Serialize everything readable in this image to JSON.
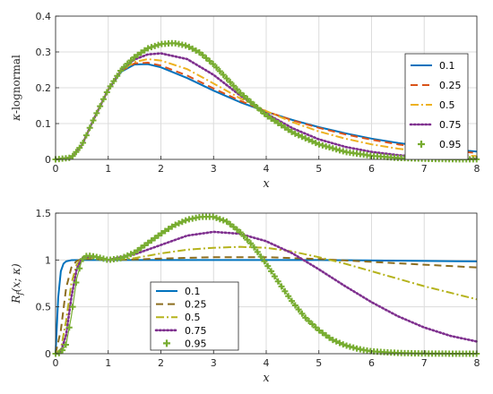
{
  "chart_data": [
    {
      "type": "line",
      "ylabel_prefix": "κ",
      "ylabel_rest": "-lognormal",
      "xlabel": "x",
      "xlim": [
        0,
        8
      ],
      "ylim": [
        0,
        0.4
      ],
      "xticks": [
        0,
        1,
        2,
        3,
        4,
        5,
        6,
        7,
        8
      ],
      "yticks": [
        "0",
        "0.1",
        "0.2",
        "0.3",
        "0.4"
      ],
      "grid": true,
      "legend_position": "right",
      "series": [
        {
          "name": "0.1",
          "color": "#0072BD",
          "style": "solid",
          "x": [
            0,
            0.3,
            0.5,
            0.75,
            1,
            1.25,
            1.5,
            1.75,
            2,
            2.5,
            3,
            3.5,
            4,
            4.5,
            5,
            5.5,
            6,
            6.5,
            7,
            7.5,
            8
          ],
          "y": [
            0,
            0.005,
            0.04,
            0.12,
            0.195,
            0.245,
            0.265,
            0.266,
            0.257,
            0.227,
            0.192,
            0.16,
            0.133,
            0.11,
            0.09,
            0.073,
            0.058,
            0.046,
            0.036,
            0.028,
            0.022
          ]
        },
        {
          "name": "0.25",
          "color": "#D95319",
          "style": "dashed",
          "x": [
            0,
            0.3,
            0.5,
            0.75,
            1,
            1.25,
            1.5,
            1.75,
            2,
            2.5,
            3,
            3.5,
            4,
            4.5,
            5,
            5.5,
            6,
            6.5,
            7,
            7.5,
            8
          ],
          "y": [
            0,
            0.005,
            0.04,
            0.12,
            0.195,
            0.247,
            0.268,
            0.27,
            0.262,
            0.234,
            0.198,
            0.164,
            0.134,
            0.109,
            0.088,
            0.07,
            0.055,
            0.042,
            0.032,
            0.024,
            0.018
          ]
        },
        {
          "name": "0.5",
          "color": "#EDB120",
          "style": "dashdot",
          "x": [
            0,
            0.3,
            0.5,
            0.75,
            1,
            1.25,
            1.5,
            1.75,
            2,
            2.5,
            3,
            3.5,
            4,
            4.5,
            5,
            5.5,
            6,
            6.5,
            7,
            7.5,
            8
          ],
          "y": [
            0,
            0.005,
            0.04,
            0.12,
            0.195,
            0.248,
            0.272,
            0.28,
            0.276,
            0.252,
            0.212,
            0.171,
            0.135,
            0.104,
            0.078,
            0.058,
            0.042,
            0.03,
            0.021,
            0.014,
            0.009
          ]
        },
        {
          "name": "0.75",
          "color": "#7E2F8E",
          "style": "dotted",
          "x": [
            0,
            0.3,
            0.5,
            0.75,
            1,
            1.25,
            1.5,
            1.75,
            2,
            2.5,
            3,
            3.5,
            4,
            4.5,
            5,
            5.5,
            6,
            6.5,
            7,
            7.5,
            8
          ],
          "y": [
            0,
            0.005,
            0.04,
            0.12,
            0.195,
            0.25,
            0.279,
            0.293,
            0.296,
            0.28,
            0.236,
            0.179,
            0.128,
            0.087,
            0.056,
            0.035,
            0.021,
            0.012,
            0.006,
            0.003,
            0.0015
          ]
        },
        {
          "name": "0.95",
          "color": "#77AC30",
          "style": "plus",
          "x": [
            0,
            0.3,
            0.5,
            0.75,
            1,
            1.25,
            1.5,
            1.75,
            2,
            2.25,
            2.5,
            2.75,
            3,
            3.5,
            4,
            4.5,
            5,
            5.5,
            6,
            6.5,
            7,
            7.5,
            8
          ],
          "y": [
            0,
            0.005,
            0.04,
            0.12,
            0.195,
            0.251,
            0.286,
            0.31,
            0.322,
            0.325,
            0.317,
            0.297,
            0.265,
            0.187,
            0.123,
            0.075,
            0.042,
            0.021,
            0.01,
            0.004,
            0.0015,
            0.0005,
            0.0002
          ]
        }
      ]
    },
    {
      "type": "line",
      "ylabel_main": "R",
      "ylabel_sub": "f",
      "ylabel_rest": "(x; κ)",
      "xlabel": "x",
      "xlim": [
        0,
        8
      ],
      "ylim": [
        0,
        1.5
      ],
      "xticks": [
        0,
        1,
        2,
        3,
        4,
        5,
        6,
        7,
        8
      ],
      "yticks": [
        "0",
        "0.5",
        "1",
        "1.5"
      ],
      "grid": true,
      "legend_position": "bottom-left",
      "series": [
        {
          "name": "0.1",
          "color": "#0072BD",
          "style": "solid",
          "x": [
            0,
            0.05,
            0.1,
            0.15,
            0.2,
            0.3,
            0.5,
            1,
            2,
            3,
            4,
            5,
            6,
            7,
            8
          ],
          "y": [
            0,
            0.6,
            0.88,
            0.96,
            0.985,
            0.998,
            1.0,
            1.0,
            1.0,
            1.0,
            1.0,
            1.0,
            0.995,
            0.99,
            0.985
          ]
        },
        {
          "name": "0.25",
          "color": "#8c6d1f",
          "style": "dashed",
          "x": [
            0,
            0.1,
            0.2,
            0.3,
            0.4,
            0.5,
            0.7,
            1,
            1.5,
            2,
            3,
            4,
            5,
            6,
            7,
            8
          ],
          "y": [
            0,
            0.25,
            0.7,
            0.92,
            0.99,
            1.01,
            1.01,
            1.0,
            1.005,
            1.015,
            1.03,
            1.03,
            1.01,
            0.98,
            0.95,
            0.92
          ]
        },
        {
          "name": "0.5",
          "color": "#b5b31d",
          "style": "dashdot",
          "x": [
            0,
            0.1,
            0.2,
            0.3,
            0.4,
            0.5,
            0.7,
            1,
            1.5,
            2,
            2.5,
            3,
            3.5,
            4,
            4.5,
            5,
            5.5,
            6,
            6.5,
            7,
            7.5,
            8
          ],
          "y": [
            0,
            0.05,
            0.35,
            0.75,
            0.95,
            1.02,
            1.03,
            1.0,
            1.02,
            1.07,
            1.11,
            1.13,
            1.14,
            1.13,
            1.09,
            1.03,
            0.96,
            0.88,
            0.8,
            0.72,
            0.65,
            0.58
          ]
        },
        {
          "name": "0.75",
          "color": "#7E2F8E",
          "style": "dotted",
          "x": [
            0,
            0.1,
            0.2,
            0.3,
            0.4,
            0.5,
            0.7,
            1,
            1.5,
            2,
            2.5,
            3,
            3.5,
            4,
            4.5,
            5,
            5.5,
            6,
            6.5,
            7,
            7.5,
            8
          ],
          "y": [
            0,
            0.02,
            0.2,
            0.6,
            0.9,
            1.02,
            1.04,
            1.0,
            1.06,
            1.16,
            1.26,
            1.3,
            1.28,
            1.2,
            1.07,
            0.9,
            0.72,
            0.55,
            0.4,
            0.28,
            0.19,
            0.13
          ]
        },
        {
          "name": "0.95",
          "color": "#77AC30",
          "style": "plus",
          "x": [
            0,
            0.1,
            0.2,
            0.3,
            0.4,
            0.5,
            0.6,
            0.8,
            1,
            1.25,
            1.5,
            1.75,
            2,
            2.25,
            2.5,
            2.75,
            3,
            3.25,
            3.5,
            3.75,
            4,
            4.25,
            4.5,
            4.75,
            5,
            5.25,
            5.5,
            5.75,
            6,
            6.5,
            7,
            7.5,
            8
          ],
          "y": [
            0,
            0.01,
            0.1,
            0.4,
            0.8,
            1.0,
            1.05,
            1.03,
            1.0,
            1.02,
            1.08,
            1.18,
            1.28,
            1.37,
            1.43,
            1.46,
            1.46,
            1.41,
            1.3,
            1.15,
            0.96,
            0.75,
            0.55,
            0.38,
            0.25,
            0.15,
            0.09,
            0.05,
            0.025,
            0.008,
            0.002,
            0.0005,
            0.0001
          ]
        }
      ]
    }
  ]
}
